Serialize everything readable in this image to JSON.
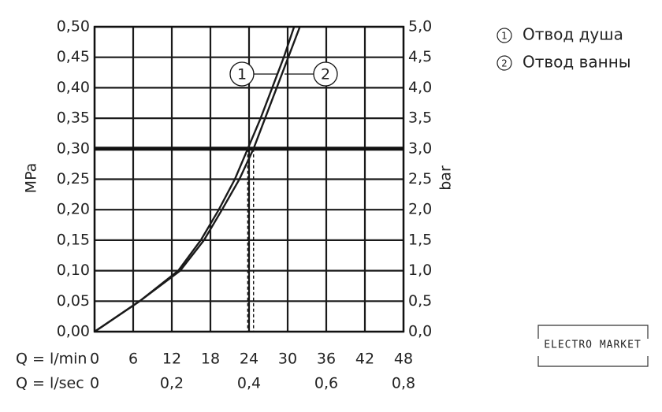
{
  "chart_data": {
    "type": "line",
    "y_label": "MPa",
    "y2_label": "bar",
    "x_label": "Q = l/min",
    "x2_label": "Q = l/sec",
    "xlim": [
      0,
      48
    ],
    "xticks": [
      0,
      6,
      12,
      18,
      24,
      30,
      36,
      42,
      48
    ],
    "x2lim": [
      0,
      0.8
    ],
    "x2ticks": [
      0,
      {
        "value": 0.2,
        "label": "0,2"
      },
      {
        "value": 0.4,
        "label": "0,4"
      },
      {
        "value": 0.6,
        "label": "0,6"
      },
      {
        "value": 0.8,
        "label": "0,8"
      }
    ],
    "ylim": [
      0,
      0.5
    ],
    "yticks": [
      {
        "value": 0,
        "label": "0,00"
      },
      {
        "value": 0.05,
        "label": "0,05"
      },
      {
        "value": 0.1,
        "label": "0,10"
      },
      {
        "value": 0.15,
        "label": "0,15"
      },
      {
        "value": 0.2,
        "label": "0,20"
      },
      {
        "value": 0.25,
        "label": "0,25"
      },
      {
        "value": 0.3,
        "label": "0,30"
      },
      {
        "value": 0.35,
        "label": "0,35"
      },
      {
        "value": 0.4,
        "label": "0,40"
      },
      {
        "value": 0.45,
        "label": "0,45"
      },
      {
        "value": 0.5,
        "label": "0,50"
      }
    ],
    "y2lim": [
      0,
      5
    ],
    "y2ticks": [
      {
        "value": 0,
        "label": "0,0"
      },
      {
        "value": 0.5,
        "label": "0,5"
      },
      {
        "value": 1,
        "label": "1,0"
      },
      {
        "value": 1.5,
        "label": "1,5"
      },
      {
        "value": 2,
        "label": "2,0"
      },
      {
        "value": 2.5,
        "label": "2,5"
      },
      {
        "value": 3,
        "label": "3,0"
      },
      {
        "value": 3.5,
        "label": "3,5"
      },
      {
        "value": 4,
        "label": "4,0"
      },
      {
        "value": 4.5,
        "label": "4,5"
      },
      {
        "value": 5,
        "label": "5,0"
      }
    ],
    "grid": true,
    "reference_y": 0.3,
    "legend": "top-right",
    "series": [
      {
        "name": "Отвод душа",
        "label": "1",
        "color": "#1a1a1a",
        "x": [
          0,
          7,
          13,
          16.5,
          19.3,
          21.8,
          23.8,
          25.8,
          27.6,
          29.4,
          31.0
        ],
        "values": [
          0,
          0.05,
          0.1,
          0.15,
          0.2,
          0.25,
          0.3,
          0.35,
          0.4,
          0.45,
          0.5
        ]
      },
      {
        "name": "Отвод ванны",
        "label": "2",
        "color": "#1a1a1a",
        "x": [
          0,
          7,
          13.3,
          17,
          19.8,
          22.5,
          24.7,
          26.5,
          28.3,
          30.1,
          31.9
        ],
        "values": [
          0,
          0.05,
          0.1,
          0.15,
          0.2,
          0.25,
          0.3,
          0.35,
          0.4,
          0.45,
          0.5
        ]
      }
    ]
  },
  "watermark": "ELECTRO MARKET"
}
